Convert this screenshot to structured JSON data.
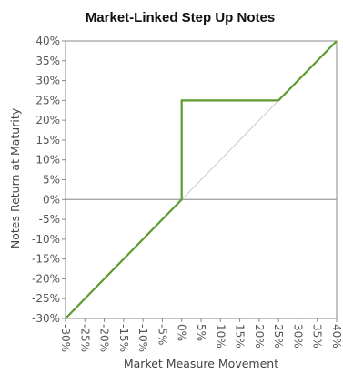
{
  "chart_data": {
    "type": "line",
    "title": "Market-Linked Step Up Notes",
    "xlabel": "Market Measure Movement",
    "ylabel": "Notes Return at Maturity",
    "xlim": [
      -30,
      40
    ],
    "ylim": [
      -30,
      40
    ],
    "x_ticks": [
      -30,
      -25,
      -20,
      -15,
      -10,
      -5,
      0,
      5,
      10,
      15,
      20,
      25,
      30,
      35,
      40
    ],
    "y_ticks": [
      -30,
      -25,
      -20,
      -15,
      -10,
      -5,
      0,
      5,
      10,
      15,
      20,
      25,
      30,
      35,
      40
    ],
    "x_tick_labels": [
      "-30%",
      "-25%",
      "-20%",
      "-15%",
      "-10%",
      "-5%",
      "0%",
      "5%",
      "10%",
      "15%",
      "20%",
      "25%",
      "30%",
      "35%",
      "40%"
    ],
    "y_tick_labels": [
      "-30%",
      "-25%",
      "-20%",
      "-15%",
      "-10%",
      "-5%",
      "0%",
      "5%",
      "10%",
      "15%",
      "20%",
      "25%",
      "30%",
      "35%",
      "40%"
    ],
    "grid": false,
    "series": [
      {
        "role": "notes-payoff",
        "color": "#5e9a2e",
        "x": [
          -30,
          0,
          0,
          25,
          40
        ],
        "y": [
          -30,
          0,
          25,
          25,
          40
        ]
      },
      {
        "role": "reference-diagonal",
        "color": "#c8c8c8",
        "x": [
          0,
          25
        ],
        "y": [
          0,
          25
        ]
      }
    ],
    "baseline": {
      "y": 0,
      "color": "#9a9a9a"
    },
    "frame_color": "#8a8a8a"
  }
}
